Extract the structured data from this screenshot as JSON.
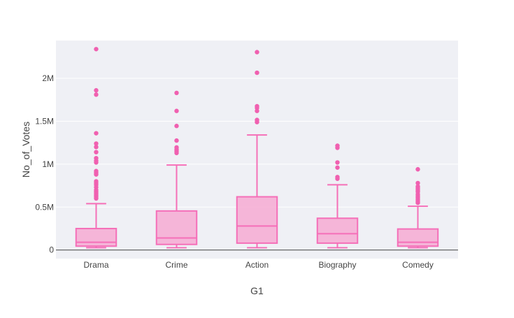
{
  "chart_data": {
    "type": "box",
    "xlabel": "G1",
    "ylabel": "No_of_Votes",
    "ylim": [
      -100000,
      2440000
    ],
    "yticks": [
      {
        "value": 0,
        "label": "0"
      },
      {
        "value": 500000,
        "label": "0.5M"
      },
      {
        "value": 1000000,
        "label": "1M"
      },
      {
        "value": 1500000,
        "label": "1.5M"
      },
      {
        "value": 2000000,
        "label": "2M"
      }
    ],
    "grid": true,
    "colors": {
      "box_line": "#f56fb8",
      "box_fill": "#f6aad2",
      "outlier": "#f060b0",
      "plot_bg": "#eff0f5",
      "grid": "#ffffff",
      "zeroline": "#444444"
    },
    "categories": [
      "Drama",
      "Crime",
      "Action",
      "Biography",
      "Comedy"
    ],
    "boxes": [
      {
        "category": "Drama",
        "lowerfence": 26000,
        "q1": 45000,
        "median": 90000,
        "q3": 250000,
        "upperfence": 540000,
        "outliers": [
          2340000,
          1860000,
          1810000,
          1360000,
          1240000,
          1200000,
          1140000,
          1070000,
          1040000,
          1020000,
          920000,
          900000,
          880000,
          800000,
          780000,
          760000,
          730000,
          700000,
          680000,
          660000,
          640000,
          620000,
          600000
        ]
      },
      {
        "category": "Crime",
        "lowerfence": 26000,
        "q1": 65000,
        "median": 140000,
        "q3": 455000,
        "upperfence": 990000,
        "outliers": [
          1830000,
          1620000,
          1445000,
          1275000,
          1195000,
          1170000,
          1150000,
          1130000
        ]
      },
      {
        "category": "Action",
        "lowerfence": 26000,
        "q1": 80000,
        "median": 280000,
        "q3": 620000,
        "upperfence": 1340000,
        "outliers": [
          2305000,
          2065000,
          1675000,
          1655000,
          1620000,
          1515000,
          1490000
        ]
      },
      {
        "category": "Biography",
        "lowerfence": 26000,
        "q1": 80000,
        "median": 190000,
        "q3": 370000,
        "upperfence": 760000,
        "outliers": [
          1215000,
          1190000,
          1020000,
          960000,
          850000,
          830000
        ]
      },
      {
        "category": "Comedy",
        "lowerfence": 26000,
        "q1": 45000,
        "median": 90000,
        "q3": 245000,
        "upperfence": 510000,
        "outliers": [
          940000,
          780000,
          740000,
          720000,
          700000,
          680000,
          650000,
          630000,
          610000,
          590000,
          570000,
          550000
        ]
      }
    ]
  }
}
